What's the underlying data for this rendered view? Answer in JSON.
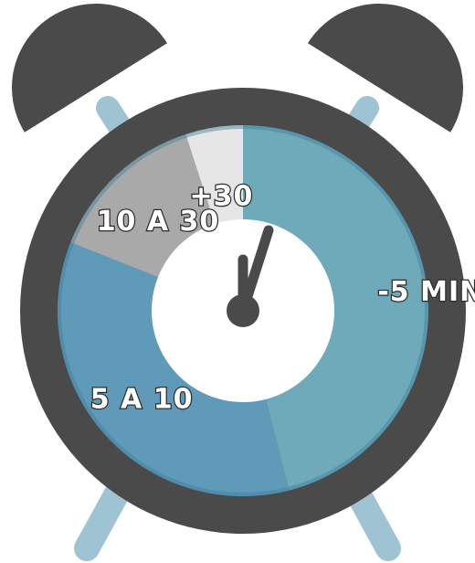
{
  "chart_data": {
    "type": "pie",
    "style": "alarm-clock donut",
    "title": "",
    "slices": [
      {
        "label": "-5 MIN",
        "value": 46,
        "color": "#6eaab9"
      },
      {
        "label": "5 A 10",
        "value": 35,
        "color": "#5f9ab9"
      },
      {
        "label": "10 A 30",
        "value": 14,
        "color": "#a9a9a9"
      },
      {
        "label": "+30",
        "value": 5,
        "color": "#e6e6e6"
      }
    ],
    "colors": {
      "clock_body": "#4a4a4a",
      "bells": "#4a4a4a",
      "legs": "#9ec4d4",
      "hands": "#4a4a4a",
      "center": "#ffffff",
      "label_text": "#ffffff",
      "label_outline": "#2d2d2d"
    }
  }
}
